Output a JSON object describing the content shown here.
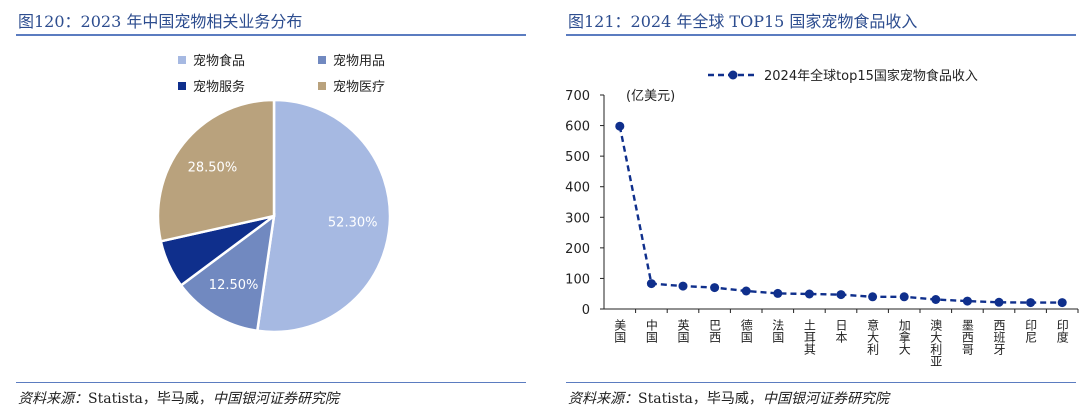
{
  "left": {
    "title": "图120：2023 年中国宠物相关业务分布",
    "source_prefix": "资料来源：",
    "source_plain": "Statista，毕马威，",
    "source_italic": "中国银河证券研究院"
  },
  "right": {
    "title": "图121：2024 年全球 TOP15 国家宠物食品收入",
    "source_prefix": "资料来源：",
    "source_plain": "Statista，毕马威，",
    "source_italic": "中国银河证券研究院"
  },
  "chart_data": [
    {
      "type": "pie",
      "title": "2023 年中国宠物相关业务分布",
      "legend_position": "top",
      "slices": [
        {
          "label": "宠物食品",
          "value": 52.3,
          "value_label": "52.30%",
          "color": "#a6b9e2"
        },
        {
          "label": "宠物用品",
          "value": 12.5,
          "value_label": "12.50%",
          "color": "#7189c0"
        },
        {
          "label": "宠物服务",
          "value": 6.7,
          "value_label": "",
          "color": "#0f2f8c"
        },
        {
          "label": "宠物医疗",
          "value": 28.5,
          "value_label": "28.50%",
          "color": "#b9a27d"
        }
      ]
    },
    {
      "type": "line",
      "title": "2024 年全球 TOP15 国家宠物食品收入",
      "unit_label": "(亿美元)",
      "series": [
        {
          "name": "2024年全球top15国家宠物食品收入",
          "color": "#0f2f8c",
          "values": [
            598,
            83,
            75,
            70,
            59,
            51,
            49,
            47,
            40,
            40,
            31,
            26,
            22,
            21,
            21
          ]
        }
      ],
      "categories": [
        "美国",
        "中国",
        "英国",
        "巴西",
        "德国",
        "法国",
        "土耳其",
        "日本",
        "意大利",
        "加拿大",
        "澳大利亚",
        "墨西哥",
        "西班牙",
        "印尼",
        "印度"
      ],
      "ylim": [
        0,
        700
      ],
      "yticks": [
        0,
        100,
        200,
        300,
        400,
        500,
        600,
        700
      ],
      "grid": false,
      "legend_position": "top"
    }
  ]
}
